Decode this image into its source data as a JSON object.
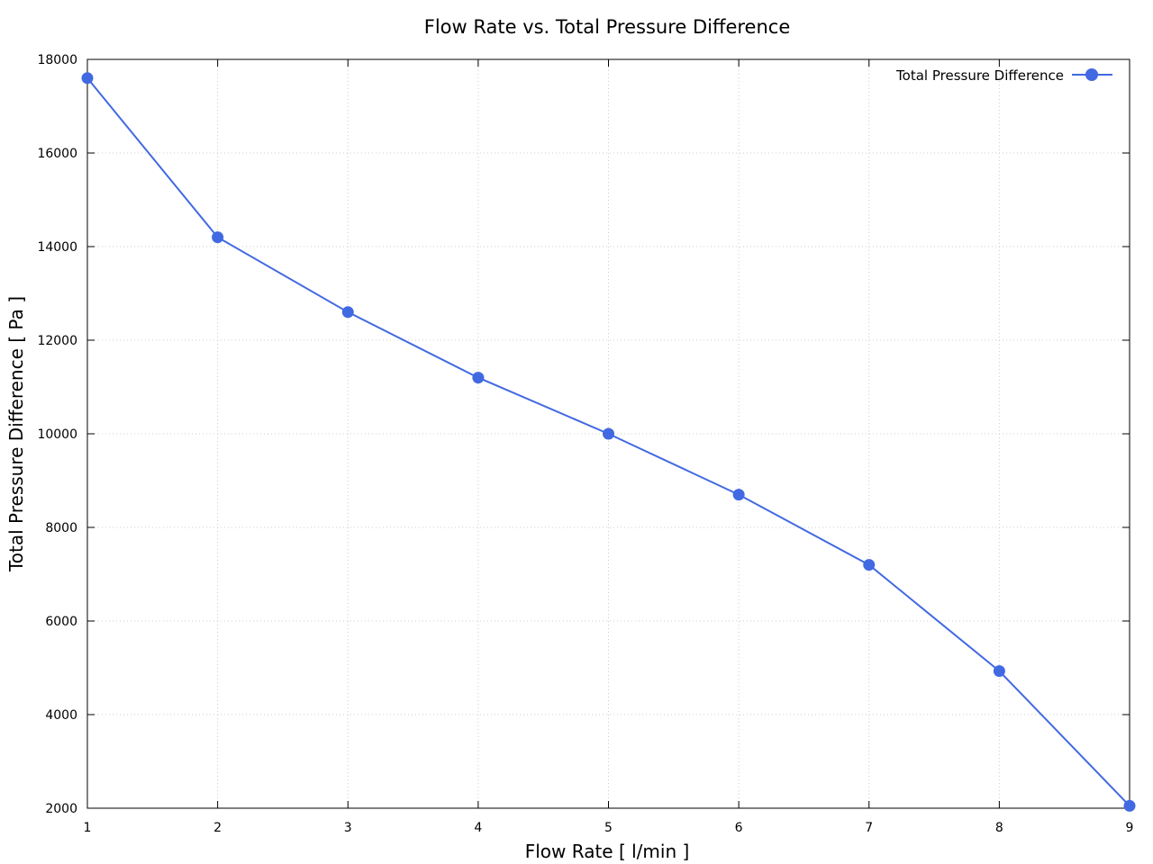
{
  "chart_data": {
    "type": "line",
    "title": "Flow Rate vs. Total Pressure Difference",
    "xlabel": "Flow Rate [ l/min ]",
    "ylabel": "Total Pressure Difference [ Pa ]",
    "xlim": [
      1,
      9
    ],
    "ylim": [
      2000,
      18000
    ],
    "xticks": [
      1,
      2,
      3,
      4,
      5,
      6,
      7,
      8,
      9
    ],
    "yticks": [
      2000,
      4000,
      6000,
      8000,
      10000,
      12000,
      14000,
      16000,
      18000
    ],
    "grid": true,
    "legend_position": "top-right",
    "series": [
      {
        "name": "Total Pressure Difference",
        "color": "#4169e1",
        "marker": "circle",
        "x": [
          1,
          2,
          3,
          4,
          5,
          6,
          7,
          8,
          9
        ],
        "y": [
          17600,
          14200,
          12600,
          11200,
          10000,
          8700,
          7200,
          4930,
          2050
        ]
      }
    ]
  }
}
